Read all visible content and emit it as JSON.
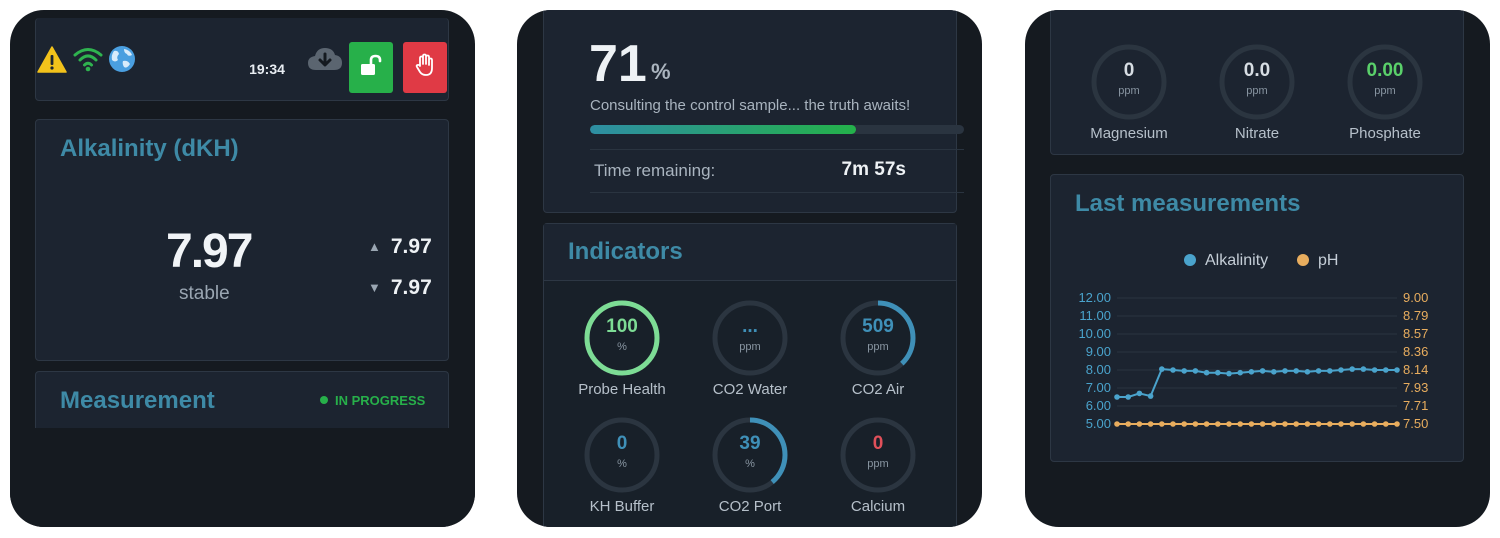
{
  "colors": {
    "background": "#151a20",
    "card": "#1c2430",
    "title_accent": "#3e8aa6",
    "unlock_button": "#27b04a",
    "stop_button": "#e03a45",
    "in_progress": "#27b04a",
    "alkalinity_series": "#4aa3cc",
    "ph_series": "#e8ad5e",
    "gauge_track": "#2b3540",
    "gauge_green": "#7ddc95",
    "gauge_blue": "#3f90b8",
    "value_red": "#e0505a",
    "value_green": "#5ad06a"
  },
  "header": {
    "time": "19:34",
    "icons": [
      "warning-icon",
      "wifi-icon",
      "globe-icon",
      "cloud-download-icon",
      "unlock-icon",
      "stop-hand-icon"
    ]
  },
  "alkalinity": {
    "title": "Alkalinity (dKH)",
    "value": "7.97",
    "trend": "stable",
    "max": "7.97",
    "min": "7.97"
  },
  "measurement": {
    "title": "Measurement",
    "status": "IN PROGRESS"
  },
  "progress": {
    "percent": "71",
    "unit": "%",
    "fill_fraction": 0.71,
    "message": "Consulting the control sample... the truth awaits!",
    "time_remaining_label": "Time remaining:",
    "time_remaining_value": "7m 57s"
  },
  "indicators": {
    "title": "Indicators",
    "items": [
      {
        "label": "Probe Health",
        "value": "100",
        "unit": "%",
        "fraction": 1.0,
        "color": "#7ddc95",
        "value_color": "#7ddc95"
      },
      {
        "label": "CO2 Water",
        "value": "...",
        "unit": "ppm",
        "fraction": 0,
        "color": "#3f90b8",
        "value_color": "#3f90b8"
      },
      {
        "label": "CO2 Air",
        "value": "509",
        "unit": "ppm",
        "fraction": 0.38,
        "color": "#3f90b8",
        "value_color": "#3f90b8"
      },
      {
        "label": "KH Buffer",
        "value": "0",
        "unit": "%",
        "fraction": 0,
        "color": "#3f90b8",
        "value_color": "#3f90b8"
      },
      {
        "label": "CO2 Port",
        "value": "39",
        "unit": "%",
        "fraction": 0.39,
        "color": "#3f90b8",
        "value_color": "#3f90b8"
      },
      {
        "label": "Calcium",
        "value": "0",
        "unit": "ppm",
        "fraction": 0,
        "color": "#e0505a",
        "value_color": "#e0505a"
      }
    ]
  },
  "nutrients": {
    "items": [
      {
        "label": "Magnesium",
        "value": "0",
        "unit": "ppm",
        "value_color": "#d7dde3"
      },
      {
        "label": "Nitrate",
        "value": "0.0",
        "unit": "ppm",
        "value_color": "#d7dde3"
      },
      {
        "label": "Phosphate",
        "value": "0.00",
        "unit": "ppm",
        "value_color": "#5ad06a"
      }
    ]
  },
  "last_measurements": {
    "title": "Last measurements"
  },
  "chart_data": {
    "type": "line",
    "title": "Last measurements",
    "series": [
      {
        "name": "Alkalinity",
        "axis": "left",
        "values": [
          6.5,
          6.5,
          6.7,
          6.55,
          8.05,
          8.0,
          7.95,
          7.95,
          7.85,
          7.85,
          7.8,
          7.85,
          7.9,
          7.95,
          7.9,
          7.95,
          7.95,
          7.9,
          7.95,
          7.95,
          8.0,
          8.05,
          8.05,
          8.0,
          8.0,
          8.0
        ]
      },
      {
        "name": "pH",
        "axis": "right",
        "values": [
          7.5,
          7.5,
          7.5,
          7.5,
          7.5,
          7.5,
          7.5,
          7.5,
          7.5,
          7.5,
          7.5,
          7.5,
          7.5,
          7.5,
          7.5,
          7.5,
          7.5,
          7.5,
          7.5,
          7.5,
          7.5,
          7.5,
          7.5,
          7.5,
          7.5,
          7.5
        ]
      }
    ],
    "y_left_ticks": [
      "12.00",
      "11.00",
      "10.00",
      "9.00",
      "8.00",
      "7.00",
      "6.00",
      "5.00"
    ],
    "y_right_ticks": [
      "9.00",
      "8.79",
      "8.57",
      "8.36",
      "8.14",
      "7.93",
      "7.71",
      "7.50"
    ],
    "ylim_left": [
      5,
      12
    ],
    "ylim_right": [
      7.5,
      9.0
    ],
    "legend": "top-center",
    "grid": true
  }
}
